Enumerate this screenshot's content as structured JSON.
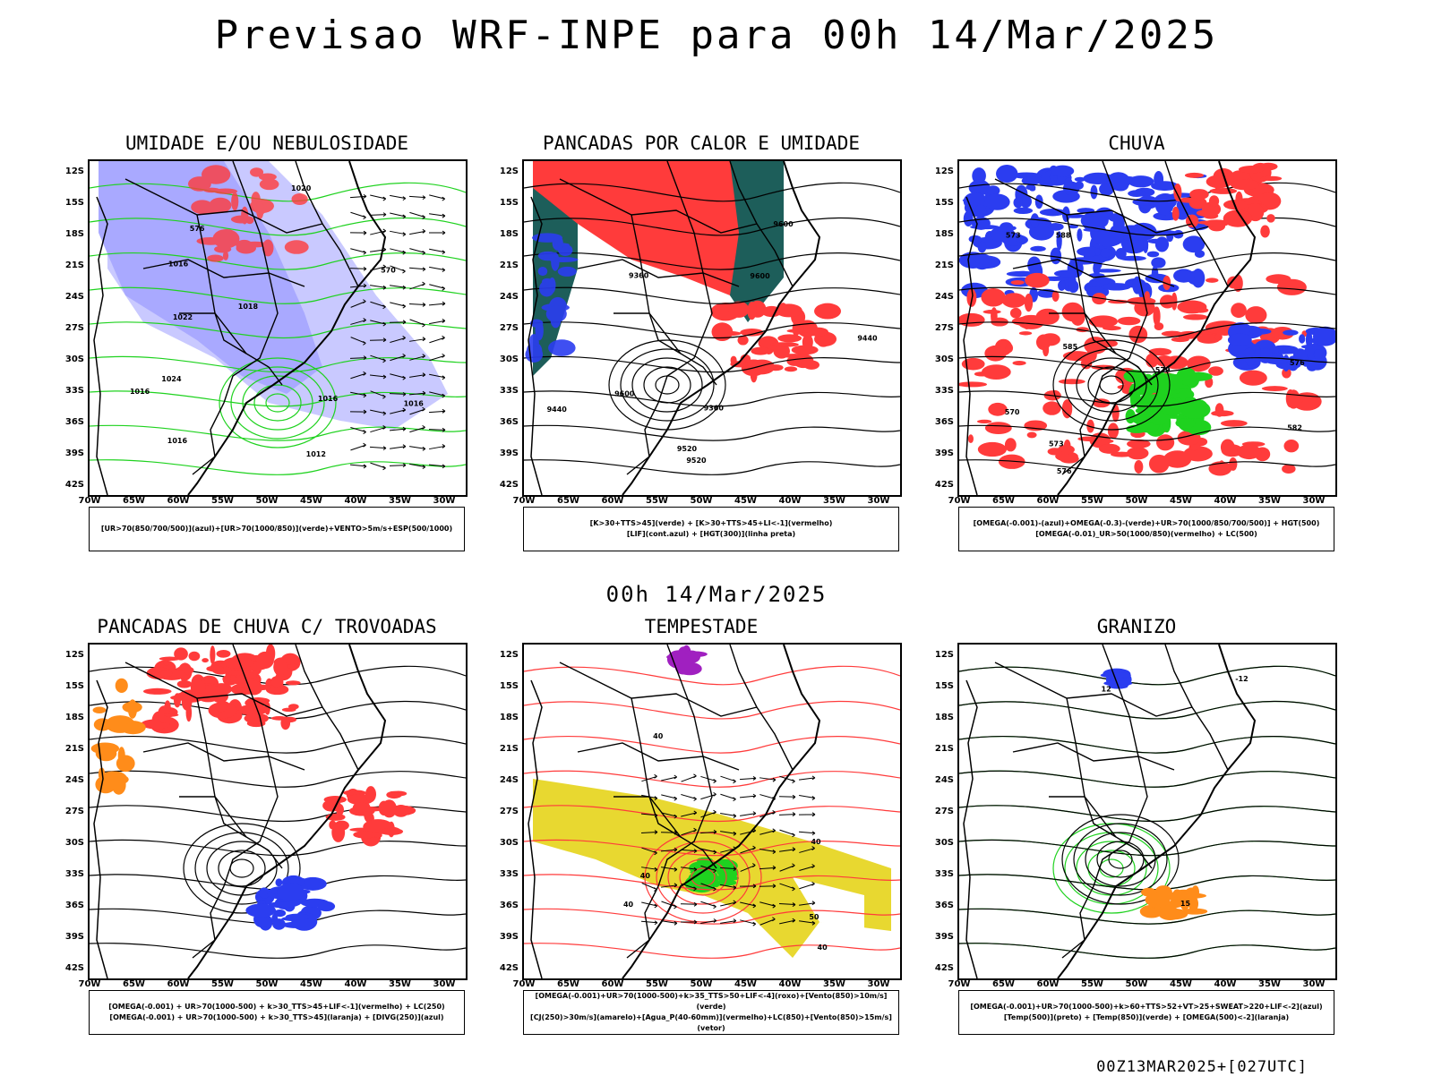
{
  "title": "Previsao WRF-INPE  para 00h 14/Mar/2025",
  "subtitle": "00h 14/Mar/2025",
  "footer": "00Z13MAR2025+[027UTC]",
  "lat_labels": [
    "12S",
    "15S",
    "18S",
    "21S",
    "24S",
    "27S",
    "30S",
    "33S",
    "36S",
    "39S",
    "42S"
  ],
  "lon_labels": [
    "70W",
    "65W",
    "60W",
    "55W",
    "50W",
    "45W",
    "40W",
    "35W",
    "30W"
  ],
  "colors": {
    "red": "#ff3b3b",
    "blue": "#2b3df0",
    "green": "#1fd21f",
    "lavender": "#a9a9ff",
    "lightblue": "#c9c9ff",
    "darkgreen": "#1d5e5a",
    "yellow": "#e8d830",
    "orange": "#ff8c1a",
    "purple": "#a020c0"
  },
  "panels": [
    {
      "id": "umidade",
      "title": "UMIDADE E/OU NEBULOSIDADE",
      "legend": [
        "[UR>70(850/700/500)](azul)+[UR>70(1000/850)](verde)+VENTO>5m/s+ESP(500/1000)"
      ],
      "contour_labels": [
        "1016",
        "1016",
        "1016",
        "1016",
        "1012",
        "1016",
        "1018",
        "1020",
        "1022",
        "1024",
        "570",
        "576"
      ]
    },
    {
      "id": "pancadas-calor",
      "title": "PANCADAS POR CALOR E UMIDADE",
      "legend": [
        "[K>30+TTS>45](verde) + [K>30+TTS>45+LI<-1](vermelho)",
        "[LIF](cont.azul) + [HGT(300)](linha preta)"
      ],
      "contour_labels": [
        "9600",
        "9520",
        "9440",
        "9600",
        "9520",
        "9360",
        "9440",
        "9360",
        "9600"
      ]
    },
    {
      "id": "chuva",
      "title": "CHUVA",
      "legend": [
        "[OMEGA(-0.001)-(azul)+OMEGA(-0.3)-(verde)+UR>70(1000/850/700/500)] + HGT(500)",
        "[OMEGA(-0.01)_UR>50(1000/850)(vermelho) + LC(500)"
      ],
      "contour_labels": [
        "585",
        "588",
        "582",
        "576",
        "573",
        "570",
        "579",
        "576",
        "573"
      ]
    },
    {
      "id": "trovoadas",
      "title": "PANCADAS DE CHUVA C/ TROVOADAS",
      "legend": [
        "[OMEGA(-0.001) + UR>70(1000-500) + k>30_TTS>45+LIF<-1](vermelho) + LC(250)",
        "[OMEGA(-0.001) + UR>70(1000-500) + k>30_TTS>45](laranja) + [DIVG(250)](azul)"
      ],
      "contour_labels": []
    },
    {
      "id": "tempestade",
      "title": "TEMPESTADE",
      "legend": [
        "[OMEGA(-0.001)+UR>70(1000-500)+k>35_TTS>50+LIF<-4](roxo)+[Vento(850)>10m/s](verde)",
        "[CJ(250)>30m/s](amarelo)+[Agua_P(40-60mm)](vermelho)+LC(850)+[Vento(850)>15m/s](vetor)"
      ],
      "contour_labels": [
        "40",
        "40",
        "40",
        "40",
        "50",
        "40"
      ]
    },
    {
      "id": "granizo",
      "title": "GRANIZO",
      "legend": [
        "[OMEGA(-0.001)+UR>70(1000-500)+k>60+TTS>52+VT>25+SWEAT>220+LIF<-2](azul)",
        "[Temp(500)](preto) + [Temp(850)](verde) + [OMEGA(500)<-2](laranja)"
      ],
      "contour_labels": [
        "12",
        "15",
        "-12"
      ]
    }
  ]
}
